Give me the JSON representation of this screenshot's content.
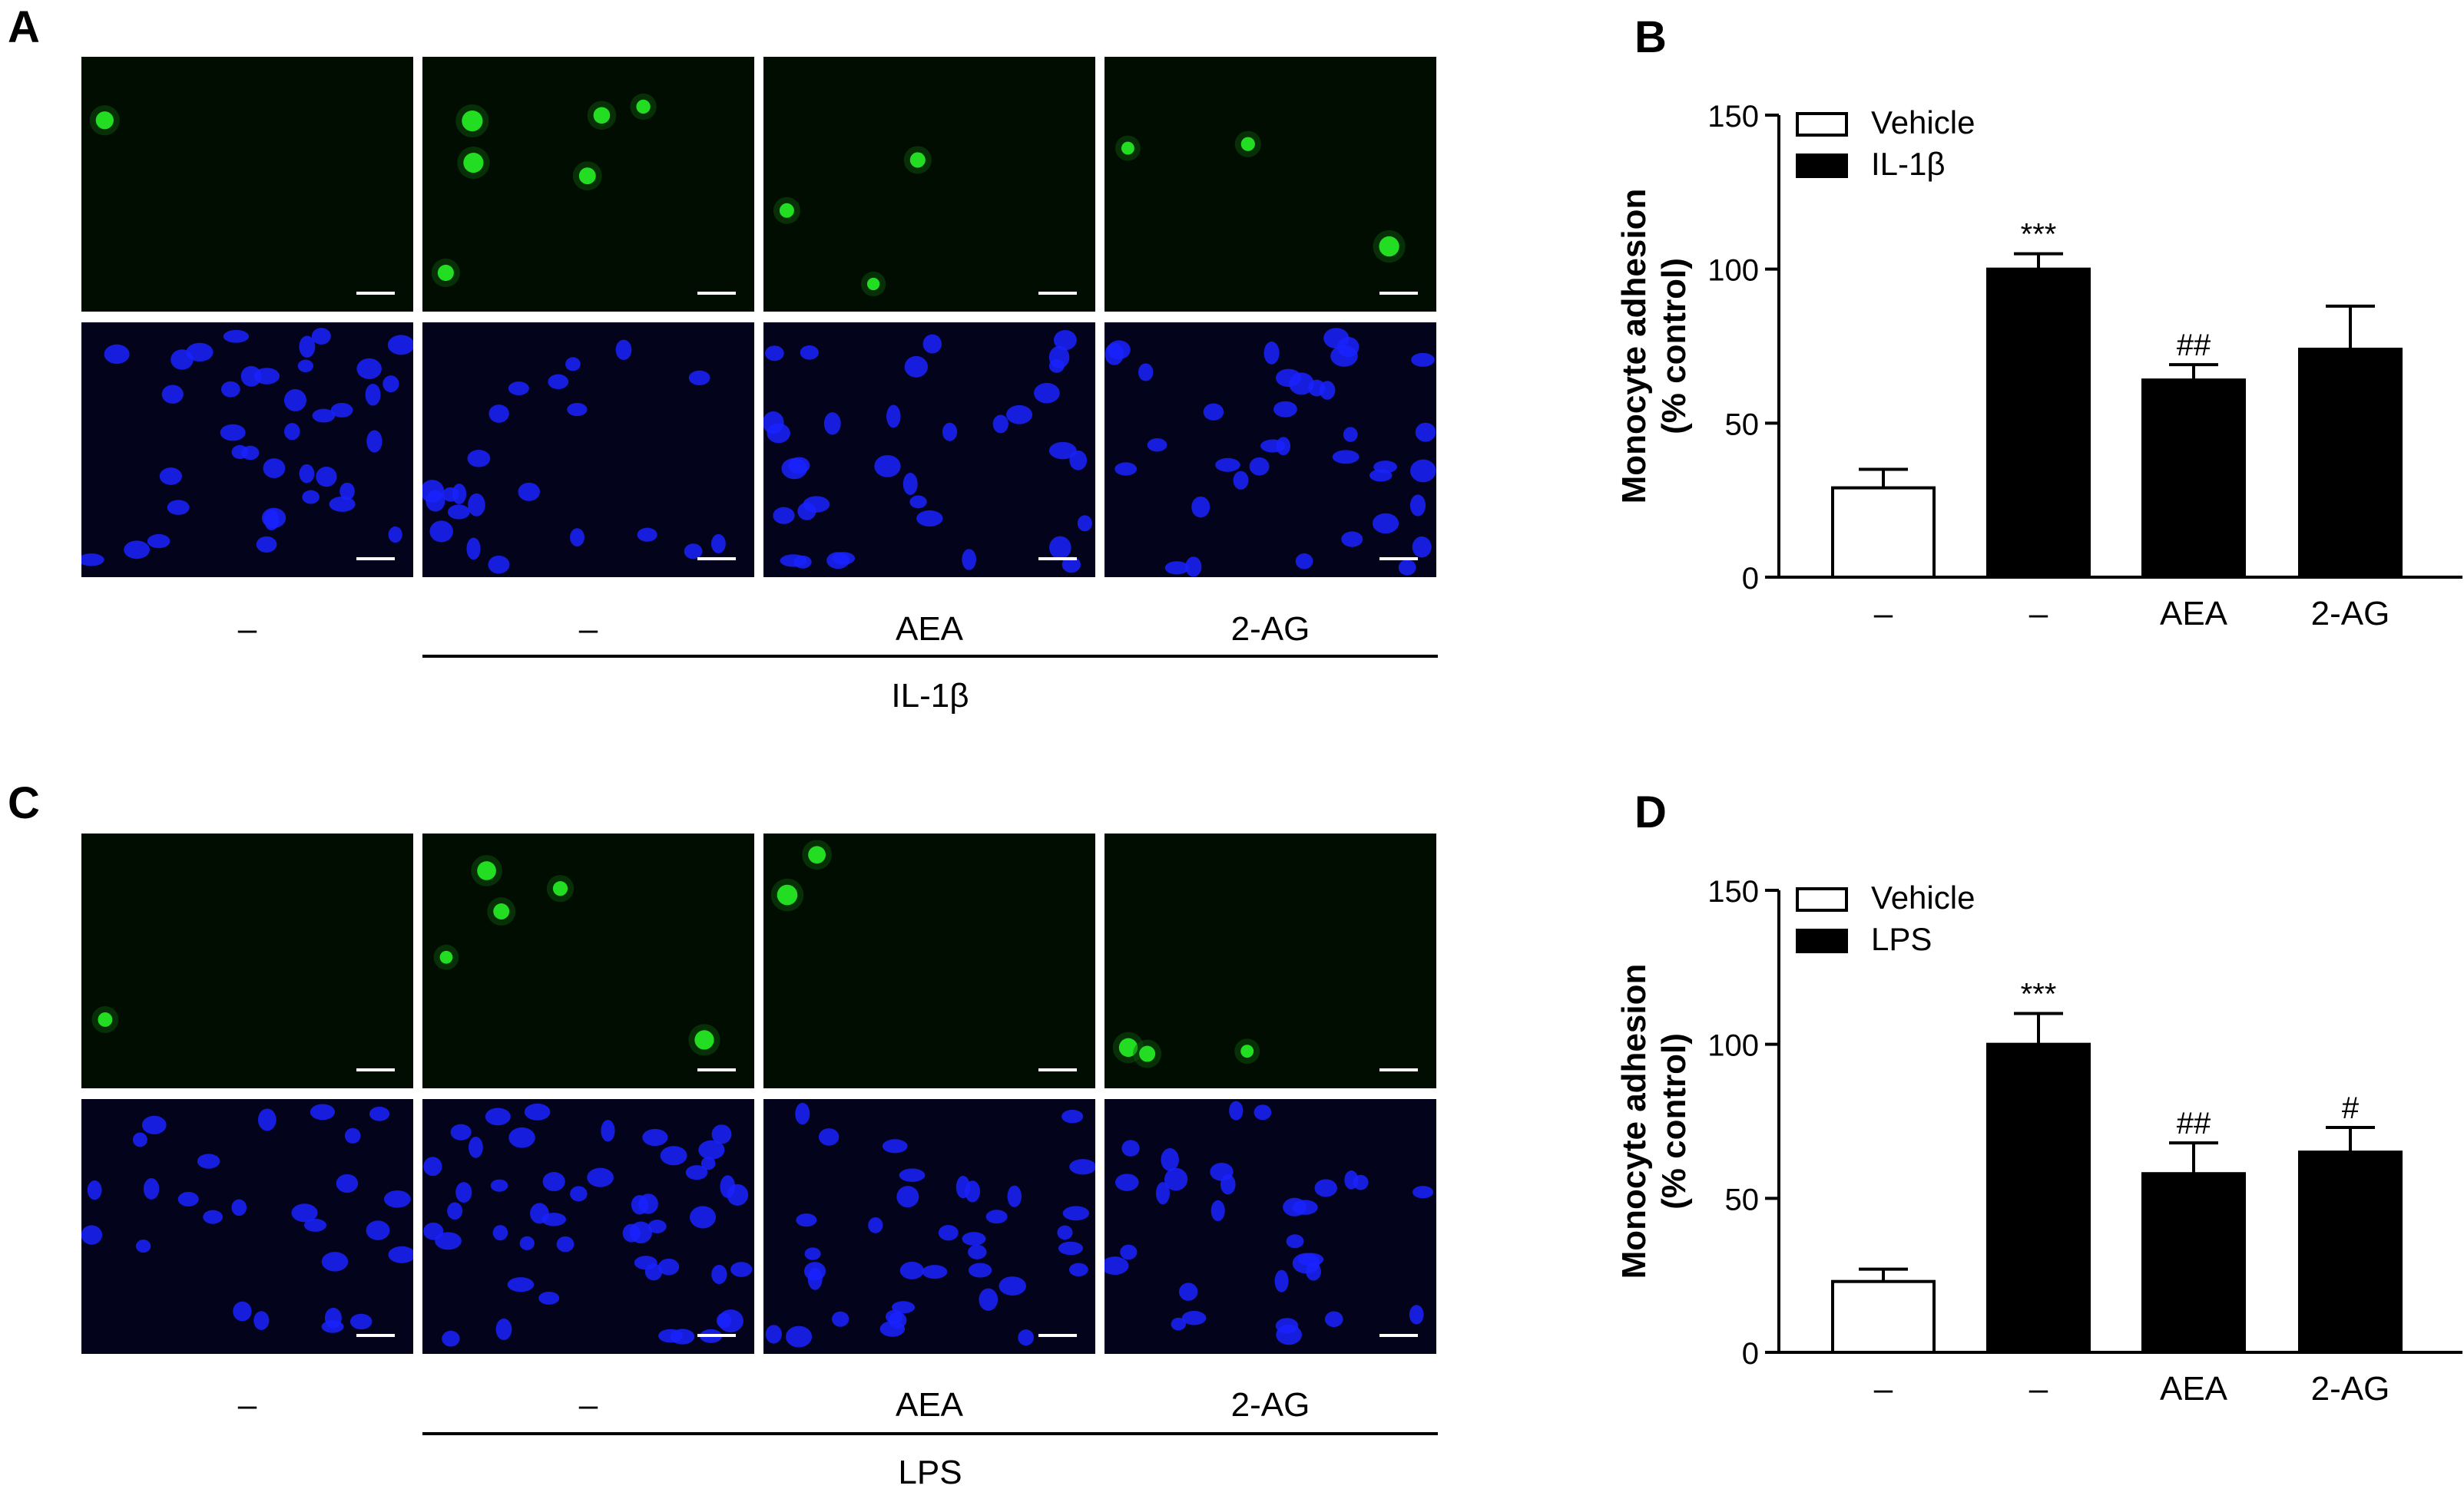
{
  "panels": {
    "A": {
      "letter": "A",
      "treatments": [
        "–",
        "–",
        "AEA",
        "2-AG"
      ],
      "group": "IL-1β"
    },
    "C": {
      "letter": "C",
      "treatments": [
        "–",
        "–",
        "AEA",
        "2-AG"
      ],
      "group": "LPS"
    }
  },
  "colors": {
    "green_stain": "#22dd22",
    "blue_stain": "#1a22ff",
    "background": "#000000",
    "bar_fill": "#000000",
    "vehicle_fill": "#ffffff"
  },
  "chart_data": [
    {
      "panel": "B",
      "type": "bar",
      "categories": [
        "–",
        "–",
        "AEA",
        "2-AG"
      ],
      "series": [
        {
          "name": "Vehicle"
        },
        {
          "name": "IL-1β"
        }
      ],
      "bar_series_index": [
        0,
        1,
        1,
        1
      ],
      "values": [
        29,
        100,
        64,
        74
      ],
      "errors": [
        6,
        5,
        5,
        14
      ],
      "significance": [
        "",
        "***",
        "##",
        ""
      ],
      "ylabel": "Monocyte adhesion",
      "ylabel2": "(% control)",
      "ylim": [
        0,
        150
      ],
      "yticks": [
        0,
        50,
        100,
        150
      ],
      "legend": "top-left"
    },
    {
      "panel": "D",
      "type": "bar",
      "categories": [
        "–",
        "–",
        "AEA",
        "2-AG"
      ],
      "series": [
        {
          "name": "Vehicle"
        },
        {
          "name": "LPS"
        }
      ],
      "bar_series_index": [
        0,
        1,
        1,
        1
      ],
      "values": [
        23,
        100,
        58,
        65
      ],
      "errors": [
        4,
        10,
        10,
        8
      ],
      "significance": [
        "",
        "***",
        "##",
        "#"
      ],
      "ylabel": "Monocyte adhesion",
      "ylabel2": "(% control)",
      "ylim": [
        0,
        150
      ],
      "yticks": [
        0,
        50,
        100,
        150
      ],
      "legend": "top-left"
    }
  ]
}
